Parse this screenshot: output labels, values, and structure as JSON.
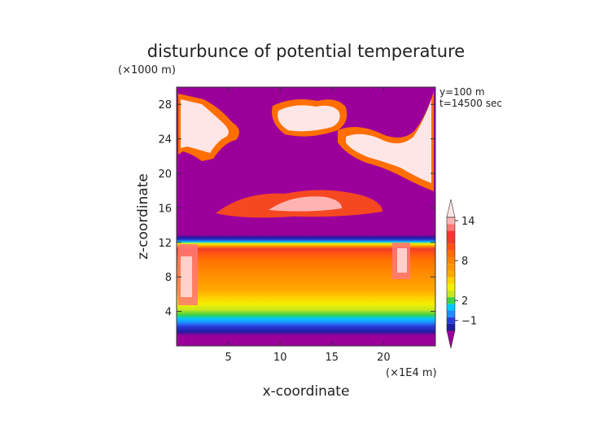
{
  "chart_data": {
    "type": "heatmap",
    "title": "disturbunce of potential temperature",
    "xlabel": "x-coordinate",
    "ylabel": "z-coordinate",
    "x_unit": "(×1E4 m)",
    "y_unit": "(×1000 m)",
    "annotations": [
      "y=100 m",
      "t=14500 sec"
    ],
    "xlim": [
      0,
      25
    ],
    "ylim": [
      0,
      30
    ],
    "x_ticks": [
      5,
      10,
      15,
      20
    ],
    "x_tick_labels": [
      "5",
      "10",
      "15",
      "20"
    ],
    "y_ticks": [
      4,
      8,
      12,
      16,
      20,
      24,
      28
    ],
    "y_tick_labels": [
      "4",
      "8",
      "12",
      "16",
      "20",
      "24",
      "28"
    ],
    "colorbar": {
      "levels": [
        -2,
        -1,
        0,
        1,
        2,
        3,
        4,
        5,
        6,
        7,
        8,
        9,
        10,
        11,
        12,
        13,
        14,
        15
      ],
      "colors": [
        "#9b009b",
        "#1e1ea0",
        "#2a3cdc",
        "#1e8cff",
        "#00c8ff",
        "#3cd246",
        "#c8e61e",
        "#f0f000",
        "#ffd200",
        "#ffaa00",
        "#ff9600",
        "#ff8200",
        "#ff6e00",
        "#ff5014",
        "#f03c28",
        "#ff3232",
        "#ff7878",
        "#ffb4b4",
        "#ffe6e6"
      ],
      "tick_values": [
        -1,
        2,
        8,
        14
      ],
      "tick_labels": [
        "−1",
        "2",
        "8",
        "14"
      ],
      "extend": "both"
    },
    "regions": [
      {
        "z_range": [
          0,
          1.2
        ],
        "value": "< -1"
      },
      {
        "z_range": [
          1.2,
          2.5
        ],
        "value": "-1 to 1"
      },
      {
        "z_range": [
          2.5,
          4
        ],
        "value": "1 to 4"
      },
      {
        "z_range": [
          4,
          8
        ],
        "value": "5 to 8"
      },
      {
        "z_range": [
          8,
          11
        ],
        "value": "9 to 12"
      },
      {
        "z_range": [
          11,
          12.5
        ],
        "value": "0 to 4"
      },
      {
        "z_range": [
          12.5,
          16
        ],
        "value": "< -1"
      },
      {
        "z_range": [
          16,
          18
        ],
        "value": "8 to 15 (patchy)"
      },
      {
        "z_range": [
          18,
          30
        ],
        "value": "< -1 with patches 10 to 15"
      }
    ]
  }
}
